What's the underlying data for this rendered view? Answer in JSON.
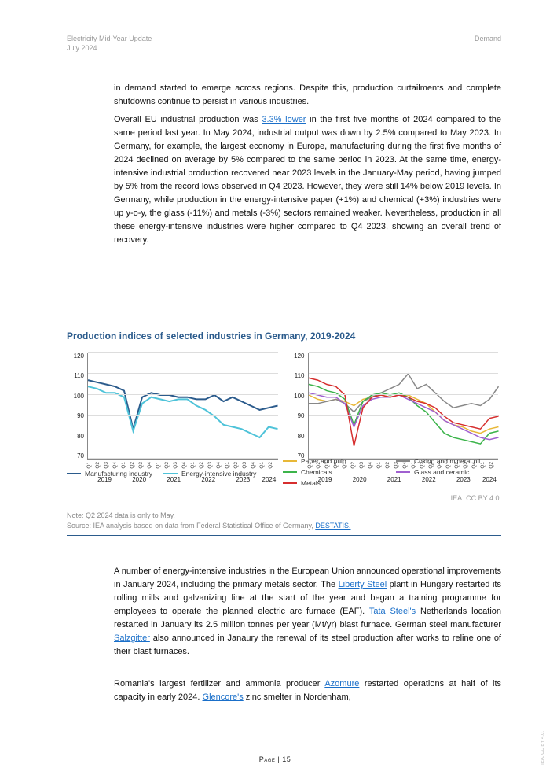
{
  "header": {
    "title": "Electricity Mid-Year Update",
    "date": "July 2024",
    "section": "Demand"
  },
  "paragraphs": {
    "p1": "in demand started to emerge across regions. Despite this, production curtailments and complete shutdowns continue to persist in various industries.",
    "p2a": "Overall EU industrial production was ",
    "p2_link": "3.3% lower",
    "p2b": " in the first five months of 2024 compared to the same period last year. In May 2024, industrial output was down by 2.5% compared to May 2023. In Germany, for example, the largest economy in Europe, manufacturing during the first five months of 2024 declined on average by 5% compared to the same period in 2023. At the same time, energy-intensive industrial production recovered near 2023 levels in the January-May period, having jumped by 5% from the record lows observed in Q4 2023. However, they were still 14% below 2019 levels. In Germany, while production in the energy-intensive paper (+1%) and chemical (+3%) industries were up y-o-y, the glass (-11%) and metals (-3%) sectors remained weaker. Nevertheless, production in all these energy-intensive industries were higher compared to Q4 2023, showing an overall trend of recovery.",
    "p3a": "A number of energy-intensive industries in the European Union announced operational improvements in January 2024, including the primary metals sector. The ",
    "p3_link1": "Liberty Steel",
    "p3b": " plant in Hungary restarted its rolling mills and galvanizing line at the start of the year and began a training programme for employees to operate the planned electric arc furnace (EAF). ",
    "p3_link2": "Tata Steel's",
    "p3c": " Netherlands location restarted in January its 2.5 million tonnes per year (Mt/yr) blast furnace. German steel manufacturer ",
    "p3_link3": "Salzgitter",
    "p3d": " also announced in Janaury the renewal of its steel production after works to reline one of their blast furnaces.",
    "p4a": "Romania's largest fertilizer and ammonia producer ",
    "p4_link1": "Azomure",
    "p4b": " restarted operations at half of its capacity in early 2024. ",
    "p4_link2": "Glencore's",
    "p4c": " zinc smelter in Nordenham,"
  },
  "chart": {
    "title": "Production indices of selected industries in Germany, 2019-2024",
    "ylim": [
      70,
      120
    ],
    "ytick_step": 10,
    "yticks": [
      "120",
      "110",
      "100",
      "90",
      "80",
      "70"
    ],
    "xticks": [
      "Q1",
      "Q2",
      "Q3",
      "Q4",
      "Q1",
      "Q2",
      "Q3",
      "Q4",
      "Q1",
      "Q2",
      "Q3",
      "Q4",
      "Q1",
      "Q2",
      "Q3",
      "Q4",
      "Q1",
      "Q2",
      "Q3",
      "Q4",
      "Q1",
      "Q2"
    ],
    "years": [
      "2019",
      "2020",
      "2021",
      "2022",
      "2023",
      "2024"
    ],
    "year_spans": [
      4,
      4,
      4,
      4,
      4,
      2
    ],
    "grid_color": "#dddddd",
    "axis_color": "#888888",
    "background_color": "#ffffff",
    "left_series": [
      {
        "name": "Manufacturing industry",
        "color": "#2b5b8c",
        "width": 2,
        "values": [
          107,
          106,
          105,
          104,
          102,
          84,
          99,
          101,
          100,
          100,
          99,
          99,
          98,
          98,
          100,
          97,
          99,
          97,
          95,
          93,
          94,
          95
        ]
      },
      {
        "name": "Energy-intensive industry",
        "color": "#4fc3d9",
        "width": 2,
        "values": [
          104,
          103,
          101,
          101,
          99,
          83,
          96,
          99,
          98,
          97,
          98,
          98,
          95,
          93,
          90,
          86,
          85,
          84,
          82,
          80,
          85,
          84
        ]
      }
    ],
    "right_series": [
      {
        "name": "Paper and pulp",
        "color": "#e8b838",
        "width": 1.5,
        "values": [
          100,
          98,
          97,
          98,
          97,
          95,
          98,
          99,
          100,
          99,
          100,
          100,
          98,
          96,
          92,
          88,
          86,
          85,
          83,
          82,
          84,
          85
        ]
      },
      {
        "name": "Coking and mineral oil",
        "color": "#888888",
        "width": 1.5,
        "values": [
          96,
          96,
          97,
          98,
          96,
          92,
          97,
          99,
          101,
          103,
          105,
          110,
          103,
          105,
          101,
          97,
          94,
          95,
          96,
          95,
          98,
          104
        ]
      },
      {
        "name": "Chemicals",
        "color": "#3cb44b",
        "width": 1.5,
        "values": [
          105,
          104,
          102,
          101,
          98,
          86,
          97,
          100,
          101,
          100,
          101,
          99,
          95,
          92,
          87,
          82,
          80,
          79,
          78,
          77,
          82,
          83
        ]
      },
      {
        "name": "Glass and ceramic",
        "color": "#a060d0",
        "width": 1.5,
        "values": [
          101,
          100,
          99,
          99,
          96,
          85,
          95,
          98,
          99,
          99,
          100,
          98,
          96,
          94,
          92,
          88,
          86,
          84,
          82,
          80,
          79,
          80
        ]
      },
      {
        "name": "Metals",
        "color": "#d62e2e",
        "width": 1.5,
        "values": [
          108,
          107,
          105,
          104,
          100,
          76,
          94,
          99,
          100,
          99,
          100,
          99,
          97,
          96,
          94,
          90,
          87,
          86,
          85,
          84,
          89,
          90
        ]
      }
    ]
  },
  "credit": "IEA. CC BY 4.0.",
  "note_line1": "Note: Q2 2024 data is only to May.",
  "note_line2a": "Source: IEA analysis based on data from Federal Statistical Office of Germany, ",
  "note_link": "DESTATIS.",
  "page_number": "Page | 15",
  "side_license": "IEA. CC BY 4.0."
}
